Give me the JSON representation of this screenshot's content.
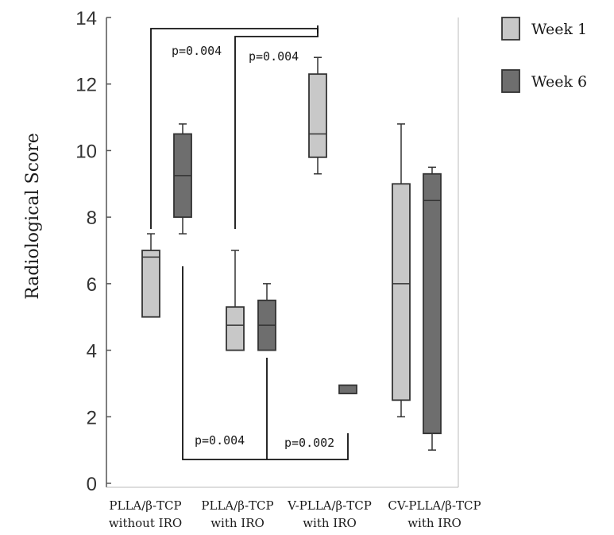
{
  "chart_data": {
    "type": "box",
    "ylabel": "Radiological Score",
    "ylim": [
      0,
      14
    ],
    "yticks": [
      "0",
      "2",
      "4",
      "6",
      "8",
      "10",
      "12",
      "14"
    ],
    "categories": [
      [
        "PLLA/β-TCP",
        "without IRO"
      ],
      [
        "PLLA/β-TCP",
        "with IRO"
      ],
      [
        "V-PLLA/β-TCP",
        "with IRO"
      ],
      [
        "CV-PLLA/β-TCP",
        "with IRO"
      ]
    ],
    "series": [
      {
        "name": "Week 1",
        "color": "#c8c8c8",
        "boxes": [
          {
            "min": 5.0,
            "q1": 5.0,
            "median": 6.8,
            "q3": 7.0,
            "max": 7.5
          },
          {
            "min": 4.0,
            "q1": 4.0,
            "median": 4.75,
            "q3": 5.3,
            "max": 7.0
          },
          {
            "min": 9.3,
            "q1": 9.8,
            "median": 10.5,
            "q3": 12.3,
            "max": 12.8
          },
          {
            "min": 2.0,
            "q1": 2.5,
            "median": 6.0,
            "q3": 9.0,
            "max": 10.8
          }
        ]
      },
      {
        "name": "Week 6",
        "color": "#6e6e6e",
        "boxes": [
          {
            "min": 7.5,
            "q1": 8.0,
            "median": 9.25,
            "q3": 10.5,
            "max": 10.8
          },
          {
            "min": 4.0,
            "q1": 4.0,
            "median": 4.75,
            "q3": 5.5,
            "max": 6.0
          },
          {
            "min": 2.7,
            "q1": 2.7,
            "median": 2.7,
            "q3": 2.95,
            "max": 2.95
          },
          {
            "min": 1.0,
            "q1": 1.5,
            "median": 8.5,
            "q3": 9.3,
            "max": 9.5
          }
        ]
      }
    ],
    "annotations": [
      {
        "text": "p=0.004"
      },
      {
        "text": "p=0.004"
      },
      {
        "text": "p=0.004"
      },
      {
        "text": "p=0.002"
      }
    ],
    "legend": {
      "position": "top-right"
    },
    "grid": false
  }
}
